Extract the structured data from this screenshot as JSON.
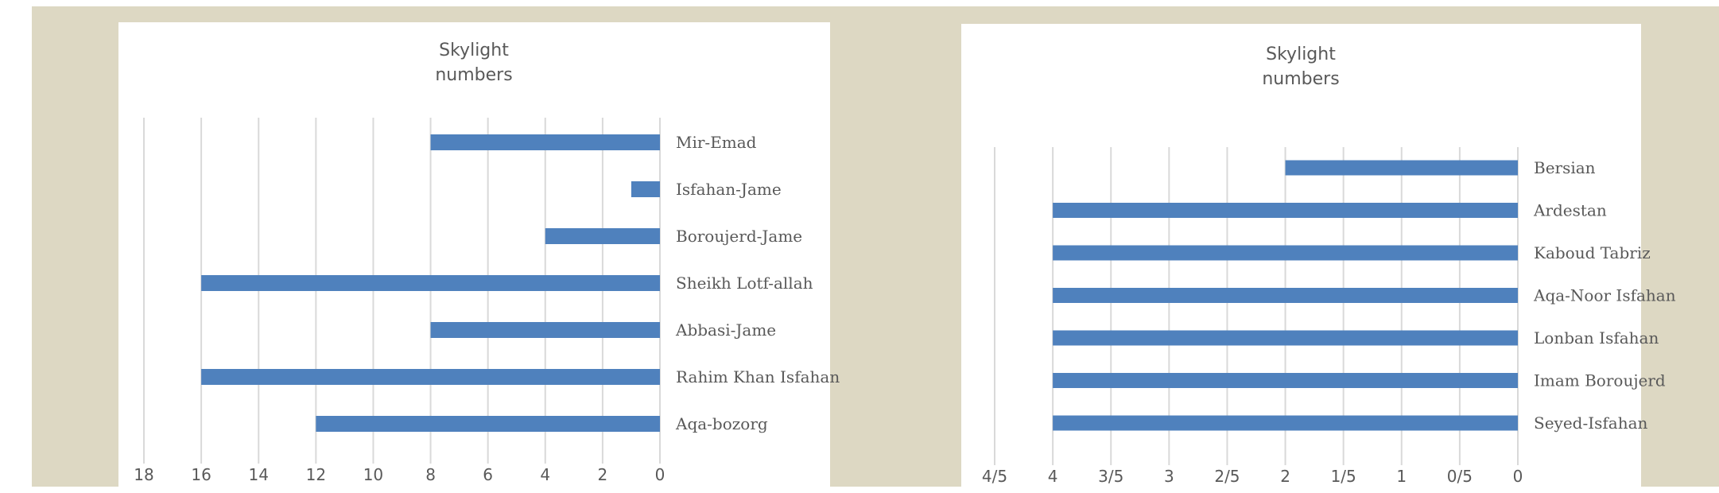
{
  "chart_data": [
    {
      "type": "bar",
      "orientation": "horizontal",
      "x_axis_reversed": true,
      "category_labels_side": "right",
      "title": "Skylight numbers",
      "title_lines": [
        "Skylight",
        "numbers"
      ],
      "categories": [
        "Mir-Emad",
        "Isfahan-Jame",
        "Boroujerd-Jame",
        "Sheikh Lotf-allah",
        "Abbasi-Jame",
        "Rahim Khan Isfahan",
        "Aqa-bozorg"
      ],
      "values": [
        8,
        1,
        4,
        16,
        8,
        16,
        12
      ],
      "xlim": [
        0,
        18
      ],
      "x_ticks": [
        18,
        16,
        14,
        12,
        10,
        8,
        6,
        4,
        2,
        0
      ],
      "x_tick_labels": [
        "18",
        "16",
        "14",
        "12",
        "10",
        "8",
        "6",
        "4",
        "2",
        "0"
      ],
      "grid": true,
      "bar_color": "#4f81bd"
    },
    {
      "type": "bar",
      "orientation": "horizontal",
      "x_axis_reversed": true,
      "category_labels_side": "right",
      "title": "Skylight numbers",
      "title_lines": [
        "Skylight",
        "numbers"
      ],
      "categories": [
        "Bersian",
        "Ardestan",
        "Kaboud Tabriz",
        "Aqa-Noor Isfahan",
        "Lonban Isfahan",
        "Imam Boroujerd",
        "Seyed-Isfahan"
      ],
      "values": [
        2,
        4,
        4,
        4,
        4,
        4,
        4
      ],
      "xlim": [
        0,
        4.5
      ],
      "x_ticks": [
        4.5,
        4,
        3.5,
        3,
        2.5,
        2,
        1.5,
        1,
        0.5,
        0
      ],
      "x_tick_labels": [
        "4/5",
        "4",
        "3/5",
        "3",
        "2/5",
        "2",
        "1/5",
        "1",
        "0/5",
        "0"
      ],
      "grid": true,
      "bar_color": "#4f81bd"
    }
  ]
}
